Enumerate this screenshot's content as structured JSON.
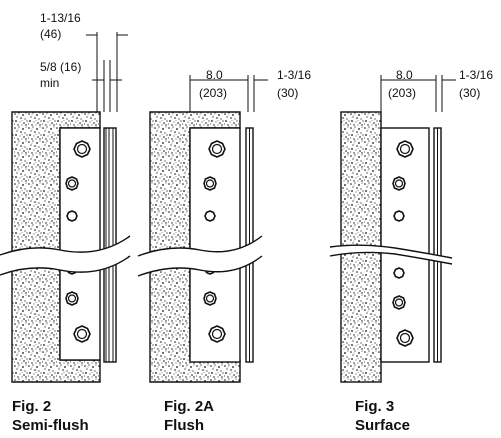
{
  "figures": [
    {
      "caption_number": "Fig. 2",
      "caption_name": "Semi-flush",
      "dim_a_inches": "1-13/16",
      "dim_a_mm": "(46)",
      "dim_b_inches": "5/8 (16)",
      "dim_b_note": "min"
    },
    {
      "caption_number": "Fig. 2A",
      "caption_name": "Flush",
      "dim_a_inches": "8.0",
      "dim_a_mm": "(203)",
      "dim_b_inches": "1-3/16",
      "dim_b_mm": "(30)"
    },
    {
      "caption_number": "Fig. 3",
      "caption_name": "Surface",
      "dim_a_inches": "8.0",
      "dim_a_mm": "(203)",
      "dim_b_inches": "1-3/16",
      "dim_b_mm": "(30)"
    }
  ],
  "colors": {
    "ink": "#111111",
    "paper": "#ffffff"
  }
}
